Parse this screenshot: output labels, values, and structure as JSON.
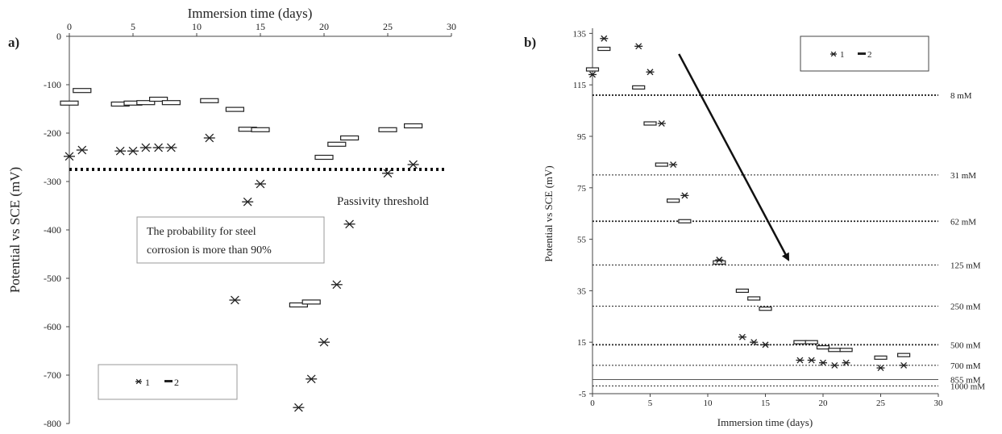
{
  "chart_data": [
    {
      "panel_label": "a)",
      "type": "scatter",
      "xlabel": "Immersion time (days)",
      "ylabel": "Potential vs SCE (mV)",
      "xlim": [
        0,
        30
      ],
      "ylim": [
        -800,
        0
      ],
      "x_ticks": [
        "0",
        "5",
        "10",
        "15",
        "20",
        "25",
        "30"
      ],
      "y_ticks": [
        "0",
        "-100",
        "-200",
        "-300",
        "-400",
        "-500",
        "-600",
        "-700",
        "-800"
      ],
      "x_axis_position": "top",
      "grid": false,
      "legend": {
        "placement": "bottom-left",
        "entries": [
          "1",
          "2"
        ]
      },
      "series": [
        {
          "name": "1",
          "marker": "asterisk",
          "x": [
            0,
            1,
            4,
            5,
            6,
            7,
            8,
            11,
            14,
            15,
            13,
            18,
            19,
            20,
            21,
            22,
            25,
            27
          ],
          "y": [
            -248,
            -235,
            -237,
            -237,
            -230,
            -230,
            -230,
            -210,
            -342,
            -305,
            -545,
            -767,
            -708,
            -632,
            -513,
            -388,
            -283,
            -265
          ]
        },
        {
          "name": "2",
          "marker": "open-rectangle",
          "x": [
            0,
            1,
            4,
            5,
            6,
            7,
            8,
            11,
            13,
            14,
            15,
            18,
            19,
            20,
            21,
            22,
            25,
            27
          ],
          "y": [
            -138,
            -112,
            -140,
            -138,
            -137,
            -130,
            -137,
            -133,
            -151,
            -192,
            -193,
            -555,
            -549,
            -250,
            -223,
            -210,
            -193,
            -185
          ]
        }
      ],
      "threshold": {
        "y": -275,
        "label": "Passivity threshold"
      },
      "note": [
        "The probability  for steel",
        "corrosion is more than 90%"
      ]
    },
    {
      "panel_label": "b)",
      "type": "scatter",
      "xlabel": "Immersion time (days)",
      "ylabel": "Potential vs SCE (mV)",
      "xlim": [
        0,
        30
      ],
      "ylim": [
        -5,
        137
      ],
      "x_ticks": [
        "0",
        "5",
        "10",
        "15",
        "20",
        "25",
        "30"
      ],
      "y_ticks": [
        "-5",
        "15",
        "35",
        "55",
        "75",
        "95",
        "115",
        "135"
      ],
      "grid": false,
      "legend": {
        "placement": "top-right",
        "entries": [
          "1",
          "2"
        ]
      },
      "series": [
        {
          "name": "1",
          "marker": "asterisk",
          "x": [
            0,
            1,
            4,
            5,
            6,
            7,
            8,
            11,
            13,
            14,
            15,
            18,
            19,
            20,
            21,
            22,
            25,
            27
          ],
          "y": [
            119,
            133,
            130,
            120,
            100,
            84,
            72,
            47,
            17,
            15,
            14,
            8,
            8,
            7,
            6,
            7,
            5,
            6
          ]
        },
        {
          "name": "2",
          "marker": "open-rectangle",
          "x": [
            0,
            1,
            4,
            5,
            6,
            7,
            8,
            11,
            13,
            14,
            15,
            18,
            19,
            20,
            21,
            22,
            25,
            27
          ],
          "y": [
            121,
            129,
            114,
            100,
            84,
            70,
            62,
            46,
            35,
            32,
            28,
            15,
            15,
            13,
            12,
            12,
            9,
            10
          ]
        }
      ],
      "concentration_lines": [
        {
          "y": 111,
          "label": "8 mM",
          "style": "dense"
        },
        {
          "y": 80,
          "label": "31 mM",
          "style": "dotted"
        },
        {
          "y": 62,
          "label": "62 mM",
          "style": "dense"
        },
        {
          "y": 45,
          "label": "125 mM",
          "style": "dotted"
        },
        {
          "y": 29,
          "label": "250 mM",
          "style": "dotted"
        },
        {
          "y": 14,
          "label": "500 mM",
          "style": "dense"
        },
        {
          "y": 6,
          "label": "700 mM",
          "style": "dotted"
        },
        {
          "y": 0.5,
          "label": "855 mM",
          "style": "solid"
        },
        {
          "y": -2,
          "label": "1000 mM",
          "style": "dotted"
        }
      ],
      "arrow": {
        "from": [
          7.5,
          127
        ],
        "to": [
          17,
          47
        ]
      }
    }
  ]
}
